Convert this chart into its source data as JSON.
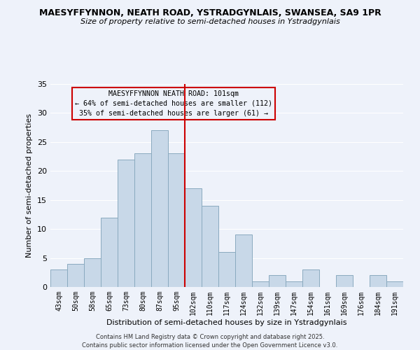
{
  "title_line1": "MAESYFFYNNON, NEATH ROAD, YSTRADGYNLAIS, SWANSEA, SA9 1PR",
  "title_line2": "Size of property relative to semi-detached houses in Ystradgynlais",
  "xlabel": "Distribution of semi-detached houses by size in Ystradgynlais",
  "ylabel": "Number of semi-detached properties",
  "categories": [
    "43sqm",
    "50sqm",
    "58sqm",
    "65sqm",
    "73sqm",
    "80sqm",
    "87sqm",
    "95sqm",
    "102sqm",
    "110sqm",
    "117sqm",
    "124sqm",
    "132sqm",
    "139sqm",
    "147sqm",
    "154sqm",
    "161sqm",
    "169sqm",
    "176sqm",
    "184sqm",
    "191sqm"
  ],
  "values": [
    3,
    4,
    5,
    12,
    22,
    23,
    27,
    23,
    17,
    14,
    6,
    9,
    1,
    2,
    1,
    3,
    0,
    2,
    0,
    2,
    1
  ],
  "bar_color": "#c8d8e8",
  "bar_edge_color": "#8aaabf",
  "bar_width": 1.0,
  "vline_index": 8,
  "vline_color": "#cc0000",
  "annotation_title": "MAESYFFYNNON NEATH ROAD: 101sqm",
  "annotation_line2": "← 64% of semi-detached houses are smaller (112)",
  "annotation_line3": "35% of semi-detached houses are larger (61) →",
  "annotation_box_edgecolor": "#cc0000",
  "ylim": [
    0,
    35
  ],
  "yticks": [
    0,
    5,
    10,
    15,
    20,
    25,
    30,
    35
  ],
  "background_color": "#eef2fa",
  "grid_color": "#ffffff",
  "footer_line1": "Contains HM Land Registry data © Crown copyright and database right 2025.",
  "footer_line2": "Contains public sector information licensed under the Open Government Licence v3.0."
}
